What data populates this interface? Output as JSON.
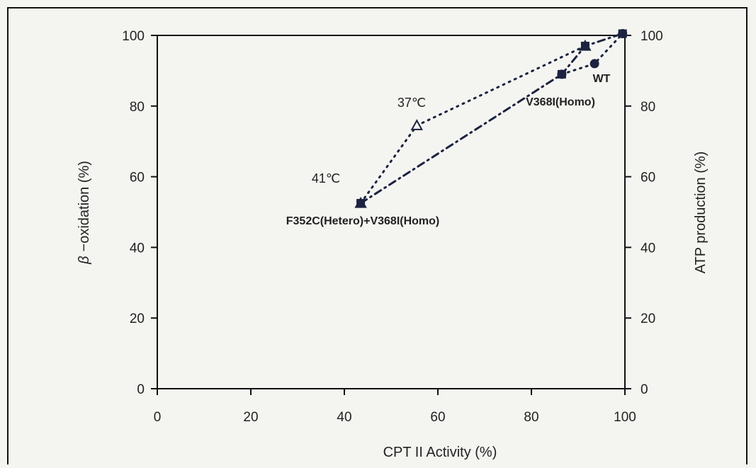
{
  "chart_data": {
    "type": "scatter",
    "title": "",
    "xlabel": "CPT II Activity (%)",
    "ylabel_left_symbol": "β",
    "ylabel_left": "−oxidation (%)",
    "ylabel_right": "ATP production (%)",
    "xlim": [
      0,
      100
    ],
    "ylim": [
      0,
      100
    ],
    "xticks": [
      0,
      20,
      40,
      60,
      80,
      100
    ],
    "yticks": [
      0,
      20,
      40,
      60,
      80,
      100
    ],
    "grid": false,
    "series": [
      {
        "marker": "triangle-open",
        "line_style": "dotted",
        "points": [
          {
            "x": 43.5,
            "y": 52.5
          },
          {
            "x": 55.5,
            "y": 74.5
          },
          {
            "x": 91.5,
            "y": 97
          }
        ]
      },
      {
        "marker": "square-filled",
        "line_style": "dash-dot",
        "points": [
          {
            "x": 43.5,
            "y": 52.5
          },
          {
            "x": 86.5,
            "y": 89
          },
          {
            "x": 91.5,
            "y": 97
          },
          {
            "x": 99.5,
            "y": 100.5
          }
        ]
      },
      {
        "marker": "circle-filled",
        "line_style": "dotted",
        "points": [
          {
            "x": 86.5,
            "y": 89
          },
          {
            "x": 93.5,
            "y": 92
          },
          {
            "x": 99.5,
            "y": 100.5
          }
        ]
      }
    ],
    "annotations": [
      {
        "id": "ann-37c",
        "text": "37℃",
        "x": 55.5,
        "y": 74.5
      },
      {
        "id": "ann-41c",
        "text": "41℃",
        "x": 43.5,
        "y": 52.5
      },
      {
        "id": "ann-f352c",
        "text": "F352C(Hetero)+V368I(Homo)",
        "x": 43.5,
        "y": 52.5
      },
      {
        "id": "ann-v368i",
        "text": "V368I(Homo)",
        "x": 86.5,
        "y": 89
      },
      {
        "id": "ann-wt",
        "text": "WT",
        "x": 93.5,
        "y": 92
      }
    ],
    "colors": {
      "ink": "#1c2340",
      "axis": "#111111",
      "background": "#f4f4f1"
    }
  }
}
